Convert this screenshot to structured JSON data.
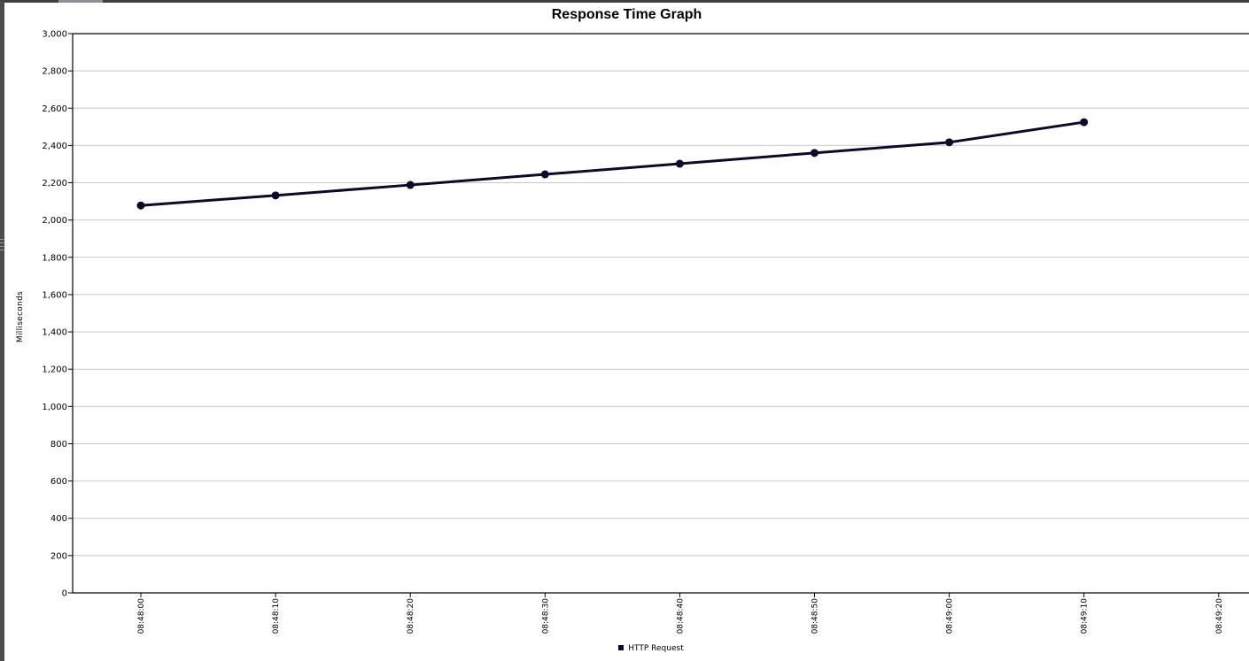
{
  "chart_data": {
    "type": "line",
    "title": "Response Time Graph",
    "xlabel": "",
    "ylabel": "Milliseconds",
    "ylim": [
      0,
      3000
    ],
    "y_ticks": [
      "0",
      "200",
      "400",
      "600",
      "800",
      "1,000",
      "1,200",
      "1,400",
      "1,600",
      "1,800",
      "2,000",
      "2,200",
      "2,400",
      "2,600",
      "2,800",
      "3,000"
    ],
    "x_ticks": [
      "08:48:00",
      "08:48:10",
      "08:48:20",
      "08:48:30",
      "08:48:40",
      "08:48:50",
      "08:49:00",
      "08:49:10",
      "08:49:20"
    ],
    "grid": true,
    "legend_position": "bottom",
    "series": [
      {
        "name": "HTTP Request",
        "color": "#0b0a2e",
        "x": [
          "08:48:00",
          "08:48:10",
          "08:48:20",
          "08:48:30",
          "08:48:40",
          "08:48:50",
          "08:49:00",
          "08:49:10"
        ],
        "values": [
          2078,
          2132,
          2188,
          2245,
          2302,
          2360,
          2417,
          2525
        ]
      }
    ]
  }
}
